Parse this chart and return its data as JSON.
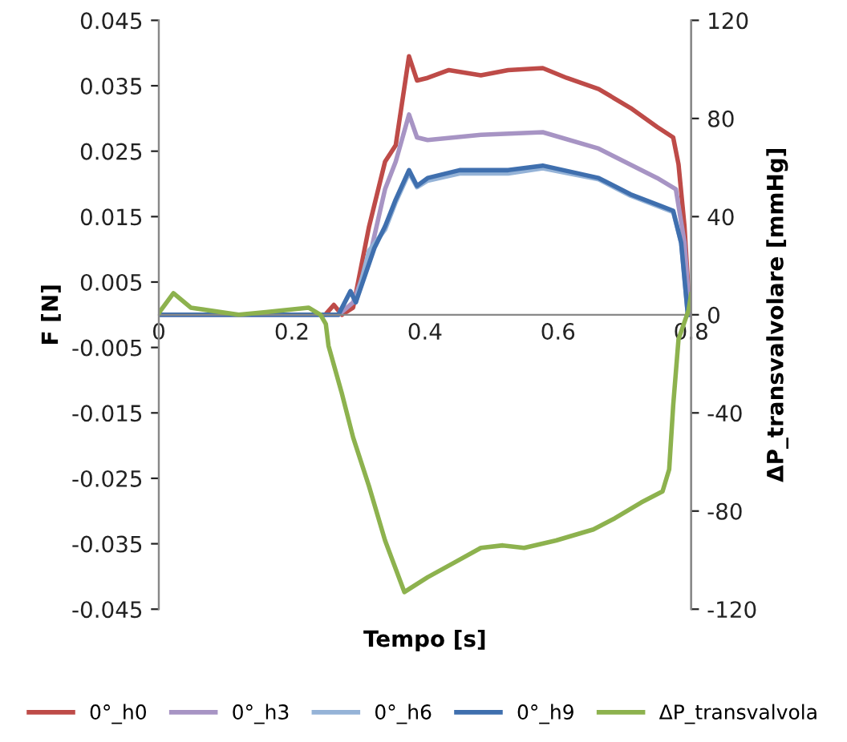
{
  "chart_data": {
    "type": "line",
    "xlabel": "Tempo [s]",
    "ylabel": "F [N]",
    "y2label": "ΔP_transvalvolare [mmHg]",
    "xlim": [
      0,
      0.8
    ],
    "xticks": [
      0,
      0.2,
      0.4,
      0.6,
      0.8
    ],
    "ylim": [
      -0.045,
      0.045
    ],
    "yticks": [
      -0.045,
      -0.035,
      -0.025,
      -0.015,
      -0.005,
      0.005,
      0.015,
      0.025,
      0.035,
      0.045
    ],
    "y2lim": [
      -120,
      120
    ],
    "y2ticks": [
      -120,
      -80,
      -40,
      0,
      40,
      80,
      120
    ],
    "grid": false,
    "legend": "bottom",
    "marker": "none",
    "line_style": "solid",
    "series": [
      {
        "name": "0°_h0",
        "color": "#be4b48",
        "x": [
          0,
          0.25,
          0.263,
          0.275,
          0.292,
          0.316,
          0.34,
          0.356,
          0.376,
          0.388,
          0.404,
          0.436,
          0.484,
          0.525,
          0.577,
          0.613,
          0.661,
          0.709,
          0.749,
          0.773,
          0.781,
          0.79,
          0.798
        ],
        "values": [
          0,
          0,
          0.0015,
          0,
          0.0011,
          0.0135,
          0.0234,
          0.0259,
          0.0395,
          0.0358,
          0.0362,
          0.0374,
          0.0366,
          0.0374,
          0.0377,
          0.0362,
          0.0345,
          0.0316,
          0.0287,
          0.0271,
          0.023,
          0.0135,
          0
        ]
      },
      {
        "name": "0°_h3",
        "color": "#a794c4",
        "x": [
          0,
          0.27,
          0.292,
          0.316,
          0.34,
          0.356,
          0.376,
          0.388,
          0.404,
          0.484,
          0.577,
          0.661,
          0.749,
          0.777,
          0.79,
          0.798
        ],
        "values": [
          0,
          0,
          0.0019,
          0.0085,
          0.0192,
          0.0234,
          0.0306,
          0.0271,
          0.0267,
          0.0275,
          0.0279,
          0.0254,
          0.0209,
          0.0192,
          0.011,
          0
        ]
      },
      {
        "name": "0°_h6",
        "color": "#95b3d7",
        "x": [
          0,
          0.27,
          0.288,
          0.296,
          0.316,
          0.34,
          0.356,
          0.376,
          0.388,
          0.404,
          0.452,
          0.525,
          0.577,
          0.661,
          0.709,
          0.773,
          0.785,
          0.795
        ],
        "values": [
          0,
          0,
          0.0036,
          0.0019,
          0.0098,
          0.013,
          0.0172,
          0.0217,
          0.0195,
          0.0205,
          0.0216,
          0.0216,
          0.0224,
          0.0207,
          0.0182,
          0.0157,
          0.011,
          0
        ]
      },
      {
        "name": "0°_h9",
        "color": "#3f6fae",
        "x": [
          0,
          0.27,
          0.288,
          0.296,
          0.324,
          0.34,
          0.356,
          0.376,
          0.388,
          0.404,
          0.452,
          0.525,
          0.577,
          0.661,
          0.709,
          0.773,
          0.785,
          0.795
        ],
        "values": [
          0,
          0,
          0.0036,
          0.0019,
          0.0102,
          0.0135,
          0.0176,
          0.0221,
          0.0197,
          0.0209,
          0.0221,
          0.0221,
          0.0228,
          0.0209,
          0.0184,
          0.0159,
          0.011,
          0
        ]
      },
      {
        "name": "ΔP_transvalvola",
        "color": "#8db24e",
        "axis": "y2",
        "x": [
          0,
          0.022,
          0.048,
          0.12,
          0.161,
          0.225,
          0.243,
          0.251,
          0.255,
          0.275,
          0.292,
          0.316,
          0.34,
          0.369,
          0.404,
          0.444,
          0.484,
          0.517,
          0.549,
          0.597,
          0.653,
          0.685,
          0.725,
          0.757,
          0.767,
          0.773,
          0.781,
          0.796,
          0.8
        ],
        "values": [
          0.7,
          8.8,
          2.9,
          0,
          1.1,
          2.9,
          0,
          -3.8,
          -12.6,
          -32,
          -50,
          -70,
          -92,
          -113,
          -107,
          -101,
          -95,
          -94,
          -95,
          -92,
          -87.5,
          -83,
          -76.5,
          -72,
          -63,
          -37,
          -10,
          1.8,
          8.4
        ]
      }
    ]
  }
}
